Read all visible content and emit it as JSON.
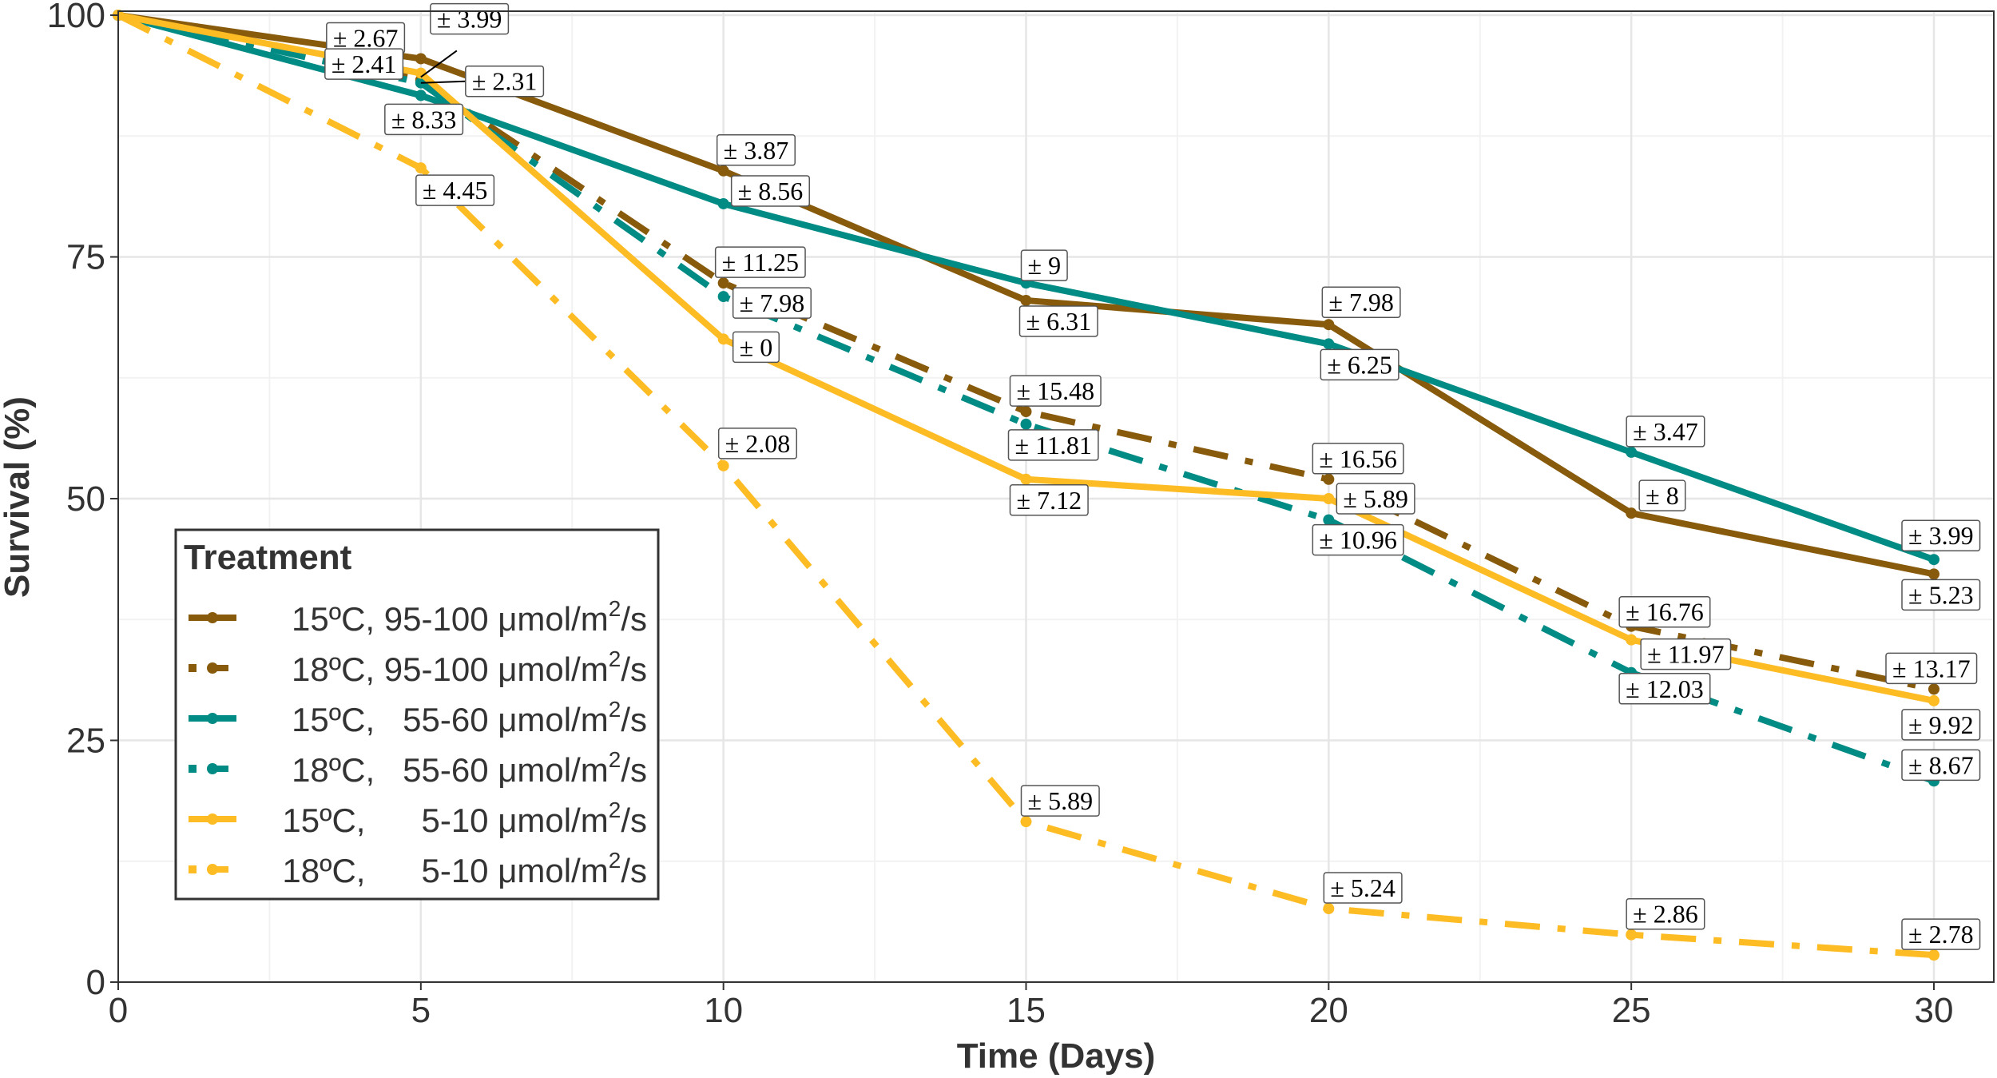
{
  "chart_data": {
    "type": "line",
    "title": "",
    "xlabel": "Time (Days)",
    "ylabel": "Survival (%)",
    "xlim": [
      0,
      30
    ],
    "ylim": [
      0,
      100
    ],
    "x_ticks": [
      0,
      5,
      10,
      15,
      20,
      25,
      30
    ],
    "y_ticks": [
      0,
      25,
      50,
      75,
      100
    ],
    "grid": true,
    "legend": {
      "title": "Treatment",
      "placement": "bottom-left"
    },
    "x": [
      0,
      5,
      10,
      15,
      20,
      25,
      30
    ],
    "series": [
      {
        "name": "15ºC, 95-100 μmol/m²/s",
        "label_main": "15ºC, 95-100 μmol/m",
        "label_sup": "2",
        "label_end": "/s",
        "color": "#875A0C",
        "linetype": "solid",
        "values": [
          100,
          95.5,
          83.9,
          70.5,
          68.0,
          48.5,
          42.2
        ],
        "errors": [
          null,
          "± 2.67",
          "± 3.87",
          "± 6.31",
          "± 7.98",
          "± 8",
          "± 5.23"
        ]
      },
      {
        "name": "18ºC, 95-100 μmol/m²/s",
        "label_main": "18ºC, 95-100 μmol/m",
        "label_sup": "2",
        "label_end": "/s",
        "color": "#875A0C",
        "linetype": "dashdot",
        "values": [
          100,
          93.3,
          72.3,
          59.0,
          52.0,
          36.8,
          30.3
        ],
        "errors": [
          null,
          "± 2.41",
          "± 11.25",
          "± 15.48",
          "± 16.56",
          "± 16.76",
          "± 13.17"
        ]
      },
      {
        "name": "15ºC, 55-60 μmol/m²/s",
        "label_main": "15ºC,   55-60 μmol/m",
        "label_sup": "2",
        "label_end": "/s",
        "color": "#008B84",
        "linetype": "solid",
        "values": [
          100,
          91.7,
          80.5,
          72.3,
          66.0,
          54.8,
          43.7
        ],
        "errors": [
          null,
          "± 8.33",
          "± 8.56",
          "± 9",
          "± 6.25",
          "± 3.47",
          "± 3.99"
        ]
      },
      {
        "name": "18ºC, 55-60 μmol/m²/s",
        "label_main": "18ºC,   55-60 μmol/m",
        "label_sup": "2",
        "label_end": "/s",
        "color": "#008B84",
        "linetype": "dashdot",
        "values": [
          100,
          93.0,
          70.9,
          57.7,
          47.8,
          32.0,
          20.8
        ],
        "errors": [
          null,
          "± 2.31",
          "± 7.98",
          "± 11.81",
          "± 10.96",
          "± 12.03",
          "± 8.67"
        ]
      },
      {
        "name": "15ºC, 5-10 μmol/m²/s",
        "label_main": "15ºC,      5-10 μmol/m",
        "label_sup": "2",
        "label_end": "/s",
        "color": "#FDBC24",
        "linetype": "solid",
        "values": [
          100,
          94.0,
          66.5,
          52.0,
          50.0,
          35.4,
          29.1
        ],
        "errors": [
          null,
          "± 3.99",
          "± 0",
          "± 7.12",
          "± 5.89",
          "± 11.97",
          "± 9.92"
        ]
      },
      {
        "name": "18ºC, 5-10 μmol/m²/s",
        "label_main": "18ºC,      5-10 μmol/m",
        "label_sup": "2",
        "label_end": "/s",
        "color": "#FDBC24",
        "linetype": "dashdot",
        "values": [
          100,
          84.2,
          53.4,
          16.6,
          7.6,
          4.9,
          2.8
        ],
        "errors": [
          null,
          "± 4.45",
          "± 2.08",
          "± 5.89",
          "± 5.24",
          "± 2.86",
          "± 2.78"
        ]
      }
    ]
  }
}
